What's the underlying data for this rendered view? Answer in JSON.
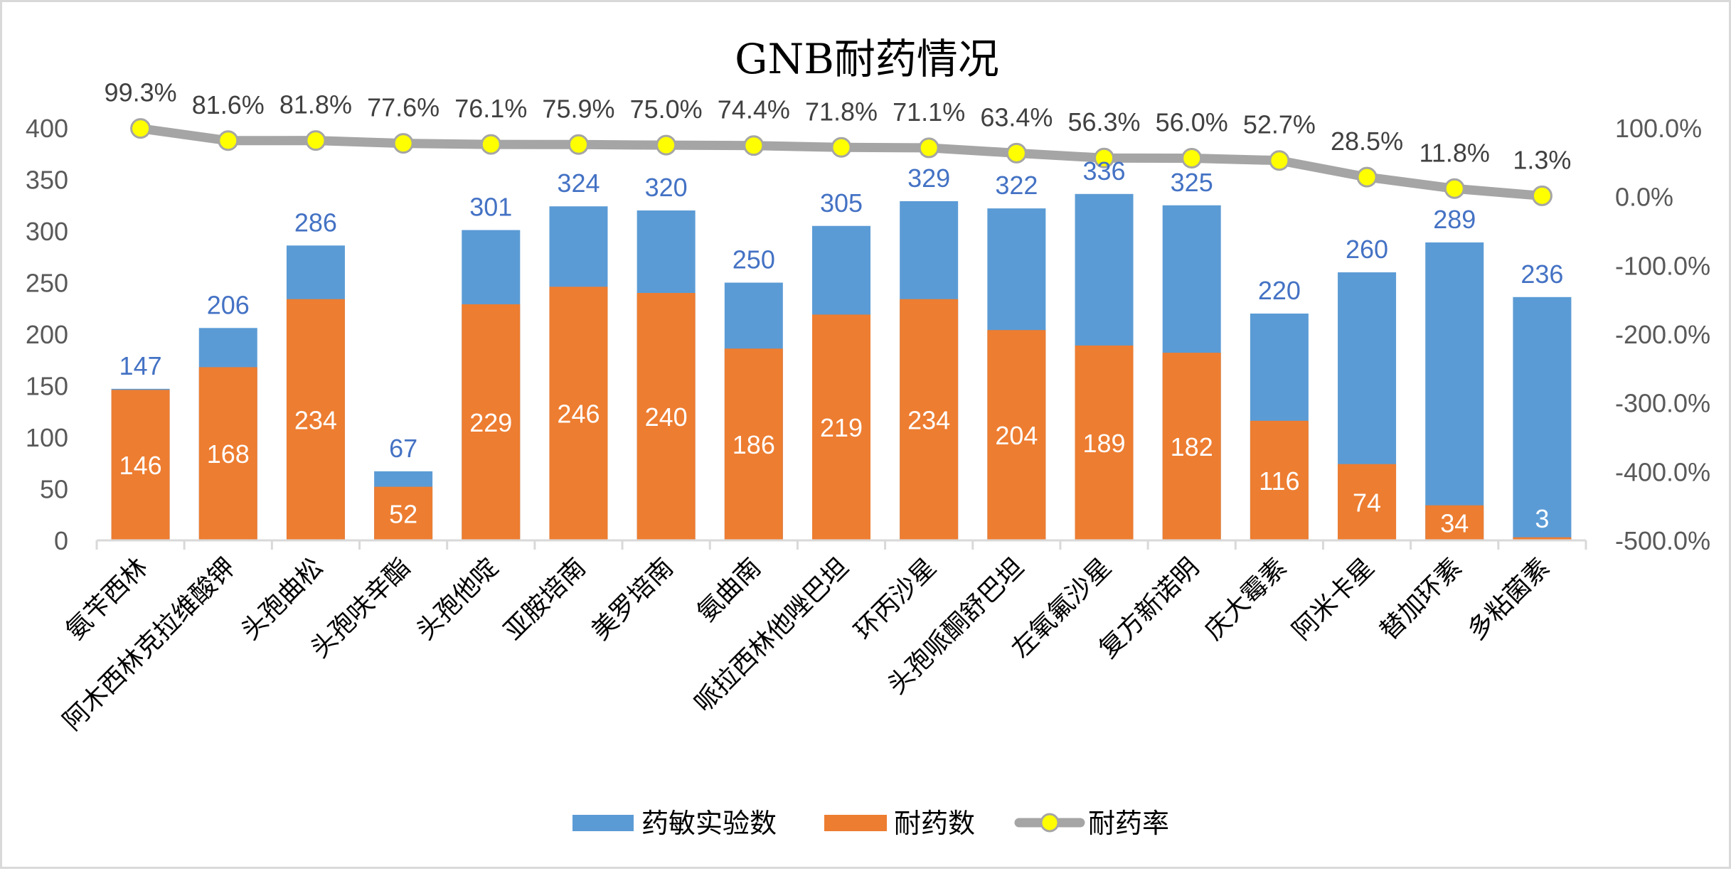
{
  "chart_data": {
    "type": "bar",
    "title": "GNB耐药情况",
    "categories": [
      "氨苄西林",
      "阿木西林克拉维酸钾",
      "头孢曲松",
      "头孢呋辛酯",
      "头孢他啶",
      "亚胺培南",
      "美罗培南",
      "氨曲南",
      "哌拉西林他唑巴坦",
      "环丙沙星",
      "头孢哌酮舒巴坦",
      "左氧氟沙星",
      "复方新诺明",
      "庆大霉素",
      "阿米卡星",
      "替加环素",
      "多粘菌素"
    ],
    "series": [
      {
        "name": "药敏实验数",
        "type": "bar",
        "axis": "left",
        "color": "#5b9bd5",
        "values": [
          147,
          206,
          286,
          67,
          301,
          324,
          320,
          250,
          305,
          329,
          322,
          336,
          325,
          220,
          260,
          289,
          236
        ]
      },
      {
        "name": "耐药数",
        "type": "bar",
        "axis": "left",
        "color": "#ed7d31",
        "values": [
          146,
          168,
          234,
          52,
          229,
          246,
          240,
          186,
          219,
          234,
          204,
          189,
          182,
          116,
          74,
          34,
          3
        ]
      },
      {
        "name": "耐药率",
        "type": "line",
        "axis": "right",
        "color": "#a5a5a5",
        "marker_color": "#ffff00",
        "values": [
          99.3,
          81.6,
          81.8,
          77.6,
          76.1,
          75.9,
          75.0,
          74.4,
          71.8,
          71.1,
          63.4,
          56.3,
          56.0,
          52.7,
          28.5,
          11.8,
          1.3
        ],
        "labels": [
          "99.3%",
          "81.6%",
          "81.8%",
          "77.6%",
          "76.1%",
          "75.9%",
          "75.0%",
          "74.4%",
          "71.8%",
          "71.1%",
          "63.4%",
          "56.3%",
          "56.0%",
          "52.7%",
          "28.5%",
          "11.8%",
          "1.3%"
        ]
      }
    ],
    "left_axis": {
      "ylim": [
        0,
        400
      ],
      "ticks": [
        "0",
        "50",
        "100",
        "150",
        "200",
        "250",
        "300",
        "350",
        "400"
      ]
    },
    "right_axis": {
      "ylim": [
        -500,
        100
      ],
      "ticks": [
        "-500.0%",
        "-400.0%",
        "-300.0%",
        "-200.0%",
        "-100.0%",
        "0.0%",
        "100.0%"
      ]
    },
    "bars_overlap": true,
    "grid": false,
    "legend": {
      "position": "bottom",
      "entries": [
        "药敏实验数",
        "耐药数",
        "耐药率"
      ]
    }
  }
}
